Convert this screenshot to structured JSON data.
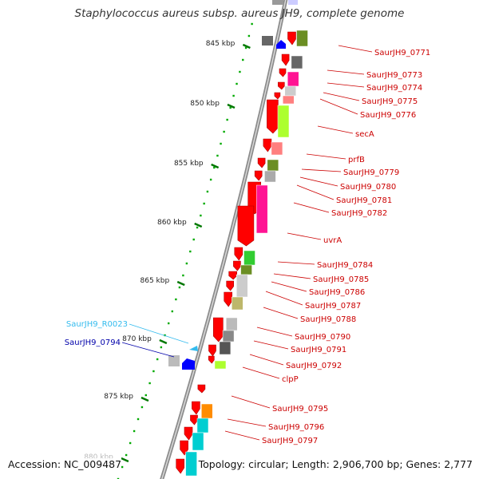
{
  "title": "Staphylococcus aureus subsp. aureus JH9, complete genome",
  "footer": {
    "accession": "Accession: NC_009487",
    "summary": "Topology: circular; Length: 2,906,700 bp; Genes: 2,777"
  },
  "colors": {
    "backbone": "#8c8c8c",
    "gene_forward": "#ff0000",
    "gene_reverse": "#0000ff",
    "tick_major": "#007700",
    "tick_minor": "#00aa00",
    "label_red": "#cc0000",
    "label_rna": "#33bbee",
    "label_blue": "#0000aa"
  },
  "scale": {
    "unit": "kbp",
    "ticks": [
      {
        "value": 845,
        "label": "845 kbp"
      },
      {
        "value": 850,
        "label": "850 kbp"
      },
      {
        "value": 855,
        "label": "855 kbp"
      },
      {
        "value": 860,
        "label": "860 kbp"
      },
      {
        "value": 865,
        "label": "865 kbp"
      },
      {
        "value": 870,
        "label": "870 kbp"
      },
      {
        "value": 875,
        "label": "875 kbp"
      },
      {
        "value": 880,
        "label": "880 kbp"
      }
    ]
  },
  "gene_labels": [
    {
      "text": "SaurJH9_0771",
      "type": "cds"
    },
    {
      "text": "SaurJH9_0773",
      "type": "cds"
    },
    {
      "text": "SaurJH9_0774",
      "type": "cds"
    },
    {
      "text": "SaurJH9_0775",
      "type": "cds"
    },
    {
      "text": "SaurJH9_0776",
      "type": "cds"
    },
    {
      "text": "secA",
      "type": "cds"
    },
    {
      "text": "prfB",
      "type": "cds"
    },
    {
      "text": "SaurJH9_0779",
      "type": "cds"
    },
    {
      "text": "SaurJH9_0780",
      "type": "cds"
    },
    {
      "text": "SaurJH9_0781",
      "type": "cds"
    },
    {
      "text": "SaurJH9_0782",
      "type": "cds"
    },
    {
      "text": "uvrA",
      "type": "cds"
    },
    {
      "text": "SaurJH9_0784",
      "type": "cds"
    },
    {
      "text": "SaurJH9_0785",
      "type": "cds"
    },
    {
      "text": "SaurJH9_0786",
      "type": "cds"
    },
    {
      "text": "SaurJH9_0787",
      "type": "cds"
    },
    {
      "text": "SaurJH9_0788",
      "type": "cds"
    },
    {
      "text": "SaurJH9_0790",
      "type": "cds"
    },
    {
      "text": "SaurJH9_0791",
      "type": "cds"
    },
    {
      "text": "SaurJH9_0792",
      "type": "cds"
    },
    {
      "text": "clpP",
      "type": "cds"
    },
    {
      "text": "SaurJH9_0795",
      "type": "cds"
    },
    {
      "text": "SaurJH9_0796",
      "type": "cds"
    },
    {
      "text": "SaurJH9_0797",
      "type": "cds"
    },
    {
      "text": "SaurJH9_R0023",
      "type": "rna"
    },
    {
      "text": "SaurJH9_0794",
      "type": "reverse"
    }
  ]
}
